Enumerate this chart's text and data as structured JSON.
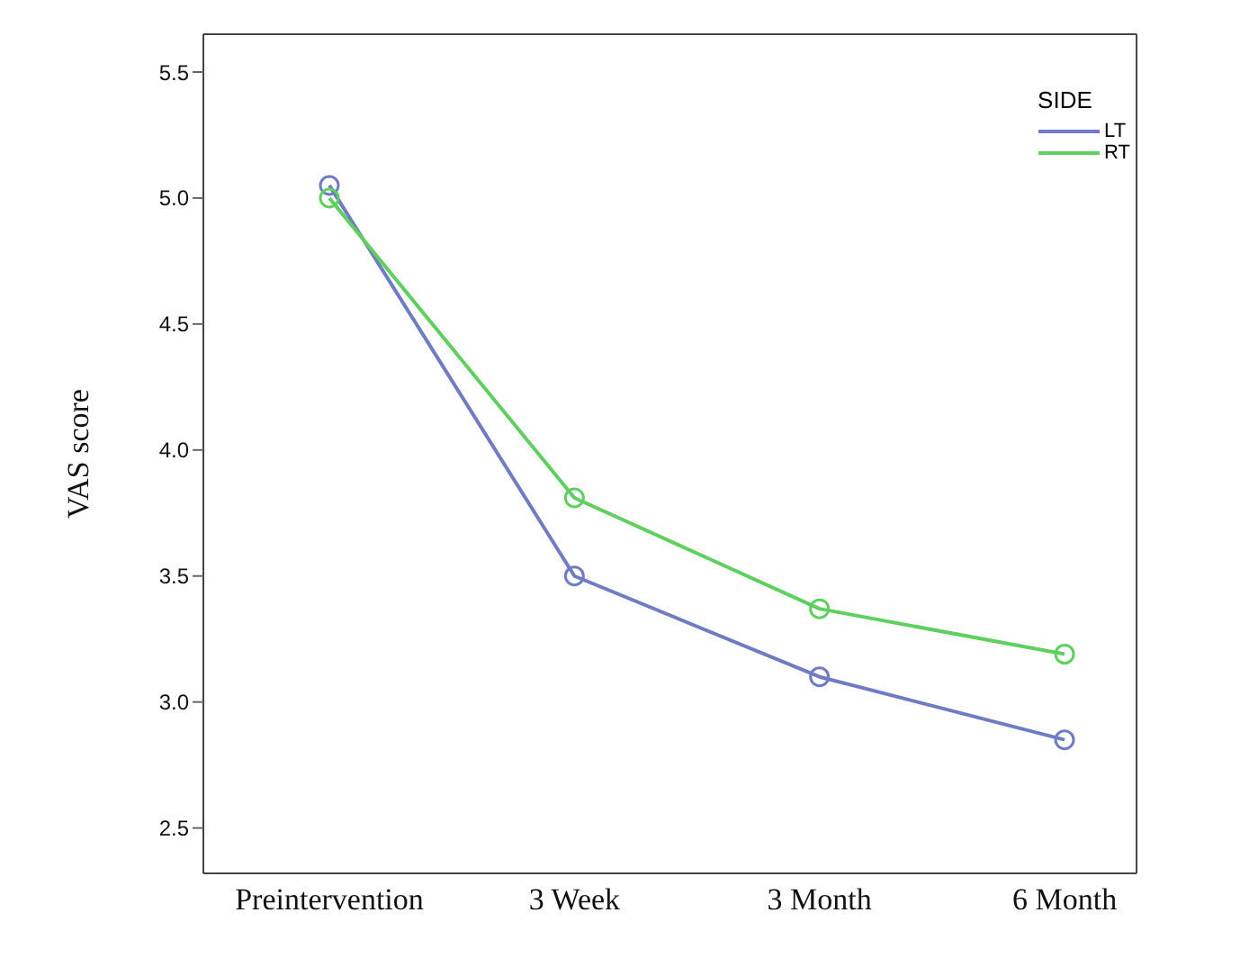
{
  "chart_data": {
    "type": "line",
    "ylabel": "VAS score",
    "legend_title": "SIDE",
    "legend": "top right",
    "marker": "circle",
    "grid": false,
    "categories": [
      "Preintervention",
      "3 Week",
      "3 Month",
      "6 Month"
    ],
    "series": [
      {
        "name": "LT",
        "color": "#6f7bc4",
        "values": [
          5.05,
          3.5,
          3.1,
          2.85
        ]
      },
      {
        "name": "RT",
        "color": "#5fcf5f",
        "values": [
          5.0,
          3.81,
          3.37,
          3.19
        ]
      }
    ],
    "ylim": [
      2.32,
      5.65
    ],
    "yticks": [
      2.5,
      {
        "value": 3,
        "label": "3.0"
      },
      3.5,
      {
        "value": 4,
        "label": "4.0"
      },
      4.5,
      {
        "value": 5,
        "label": "5.0"
      },
      5.5
    ]
  }
}
